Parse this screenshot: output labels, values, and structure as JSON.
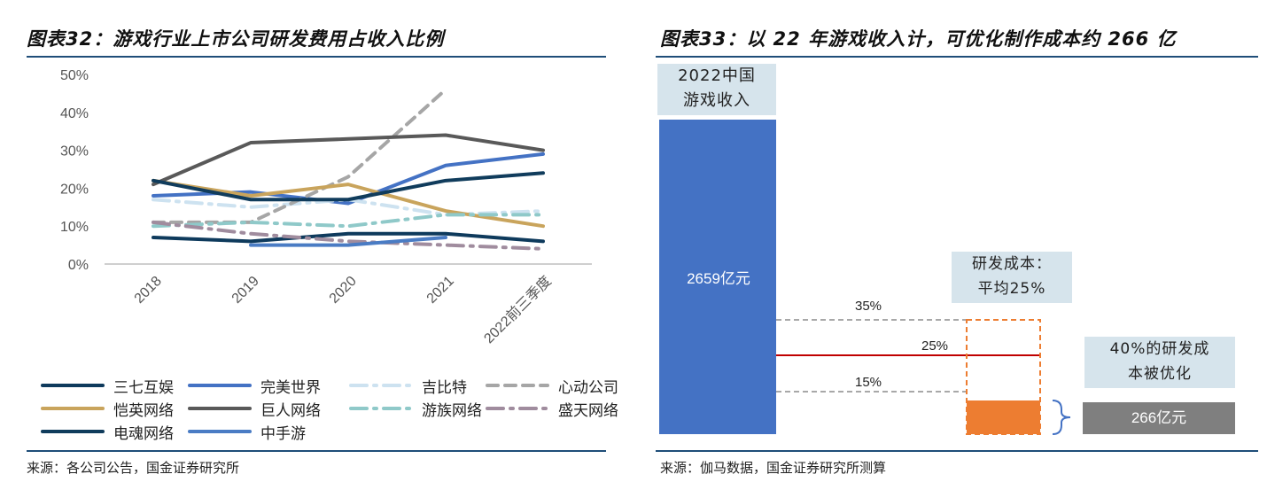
{
  "left_figure": {
    "title": "图表32：游戏行业上市公司研发费用占收入比例",
    "source": "来源：各公司公告，国金证券研究所"
  },
  "right_figure": {
    "title": "图表33：以 22 年游戏收入计，可优化制作成本约 266 亿",
    "source": "来源：伽马数据，国金证券研究所测算",
    "revenue_label": "2022中国\n游戏收入",
    "revenue_value": "2659亿元",
    "rd_cost_label": "研发成本：\n平均25%",
    "optimized_label": "40%的研发成\n本被优化",
    "optimized_value": "266亿元",
    "pct_35": "35%",
    "pct_25": "25%",
    "pct_15": "15%"
  },
  "chart_data": [
    {
      "type": "line",
      "title": "",
      "xlabel": "",
      "ylabel": "",
      "categories": [
        "2018",
        "2019",
        "2020",
        "2021",
        "2022前三季度"
      ],
      "y_ticks": [
        "0%",
        "10%",
        "20%",
        "30%",
        "40%",
        "50%"
      ],
      "ylim": [
        0,
        50
      ],
      "legend_position": "bottom",
      "series": [
        {
          "name": "三七互娱",
          "color": "#0e3a5c",
          "style": "solid",
          "values": [
            7,
            6,
            8,
            8,
            6
          ]
        },
        {
          "name": "完美世界",
          "color": "#4472c4",
          "style": "solid",
          "values": [
            18,
            19,
            16,
            26,
            29
          ]
        },
        {
          "name": "吉比特",
          "color": "#cde2f0",
          "style": "dash-dot",
          "values": [
            17,
            15,
            17,
            13,
            14
          ]
        },
        {
          "name": "心动公司",
          "color": "#a6a6a6",
          "style": "dash",
          "values": [
            11,
            11,
            23,
            46,
            null
          ]
        },
        {
          "name": "恺英网络",
          "color": "#c9a45c",
          "style": "solid",
          "values": [
            22,
            18,
            21,
            14,
            10
          ]
        },
        {
          "name": "巨人网络",
          "color": "#595959",
          "style": "solid",
          "values": [
            21,
            32,
            33,
            34,
            30
          ]
        },
        {
          "name": "游族网络",
          "color": "#8fc9c9",
          "style": "dash-dot",
          "values": [
            10,
            11,
            10,
            13,
            13
          ]
        },
        {
          "name": "盛天网络",
          "color": "#a08c9e",
          "style": "dash-dot",
          "values": [
            11,
            8,
            6,
            5,
            4
          ]
        },
        {
          "name": "电魂网络",
          "color": "#103c5c",
          "style": "solid",
          "values": [
            22,
            17,
            17,
            22,
            24
          ]
        },
        {
          "name": "中手游",
          "color": "#4a7cc4",
          "style": "solid",
          "values": [
            null,
            5,
            5,
            7,
            null
          ]
        }
      ]
    },
    {
      "type": "bar",
      "title": "",
      "xlabel": "",
      "ylabel": "",
      "categories": [
        "2022中国游戏收入",
        "研发成本",
        "优化成本"
      ],
      "values": [
        2659,
        665,
        266
      ],
      "units": "亿元",
      "rd_range_pct": [
        15,
        35
      ],
      "rd_avg_pct": 25,
      "optimized_share_of_rd_pct": 40,
      "colors": {
        "revenue": "#4472c4",
        "rd": "#ed7d31",
        "optimized": "#7f7f7f",
        "avg_line": "#c00000"
      }
    }
  ]
}
